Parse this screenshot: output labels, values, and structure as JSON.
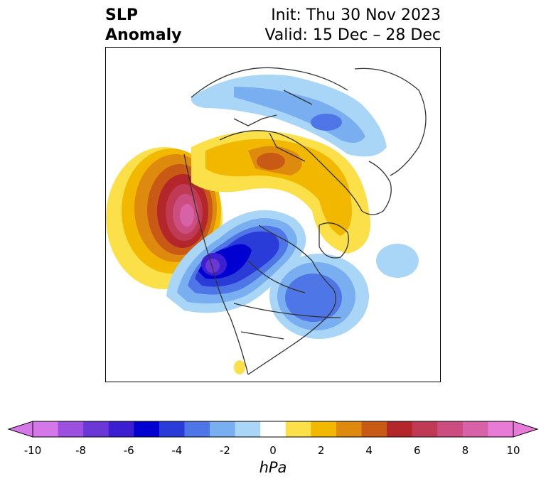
{
  "title": {
    "left_line1": "SLP",
    "left_line2": "Anomaly",
    "right_line1": "Init: Thu 30 Nov 2023",
    "right_line2": "Valid: 15 Dec – 28 Dec"
  },
  "map": {
    "projection": "polar stereographic (North America / Arctic)",
    "anomalies": [
      {
        "feature": "positive-anomaly-north-pacific",
        "peak_value": 9,
        "unit": "hPa"
      },
      {
        "feature": "positive-anomaly-siberia-arctic",
        "peak_value": 5,
        "unit": "hPa"
      },
      {
        "feature": "negative-anomaly-western-canada",
        "peak_value": -9,
        "unit": "hPa"
      },
      {
        "feature": "negative-anomaly-hudson-bay-greenland",
        "peak_value": -5,
        "unit": "hPa"
      },
      {
        "feature": "negative-anomaly-atlantic",
        "peak_value": -2,
        "unit": "hPa"
      },
      {
        "feature": "negative-anomaly-europe",
        "peak_value": -4,
        "unit": "hPa"
      }
    ]
  },
  "colorbar": {
    "unit": "hPa",
    "tick_labels": [
      "-10",
      "-8",
      "-6",
      "-4",
      "-2",
      "0",
      "2",
      "4",
      "6",
      "8",
      "10"
    ],
    "bounds": [
      -10,
      10
    ],
    "colors": [
      "#d577e8",
      "#9b50e0",
      "#6a38d6",
      "#3c1fd0",
      "#0000d0",
      "#2a3cd8",
      "#4f76e6",
      "#79aff0",
      "#a9d6f6",
      "#ffffff",
      "#fbe04a",
      "#f2b800",
      "#de8a0e",
      "#c85a16",
      "#b3262a",
      "#c03a56",
      "#cc4e80",
      "#d862a8",
      "#e87ad8"
    ],
    "extend_low_color": "#d577e8",
    "extend_high_color": "#e87ad8"
  }
}
